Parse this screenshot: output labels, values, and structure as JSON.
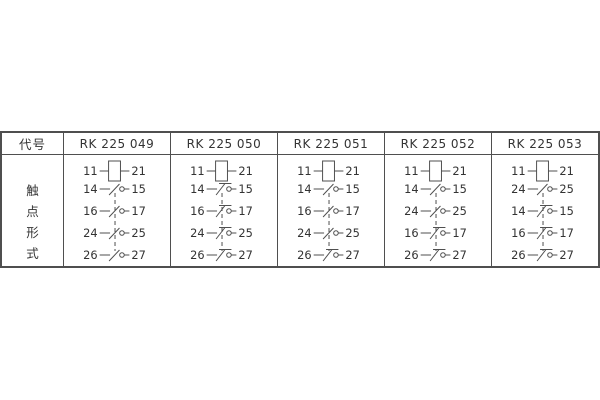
{
  "table": {
    "code_label": "代号",
    "row_label": "触点形式",
    "row_label_chars": [
      "触",
      "点",
      "形",
      "式"
    ],
    "colors": {
      "line": "#4f4f4f",
      "text": "#333333",
      "background": "#ffffff"
    },
    "columns": [
      {
        "code": "RK 225 049",
        "rows": [
          {
            "type": "coil",
            "left": "11",
            "right": "21"
          },
          {
            "type": "no",
            "left": "14",
            "right": "15"
          },
          {
            "type": "no",
            "left": "16",
            "right": "17"
          },
          {
            "type": "no",
            "left": "24",
            "right": "25"
          },
          {
            "type": "no",
            "left": "26",
            "right": "27"
          }
        ]
      },
      {
        "code": "RK 225 050",
        "rows": [
          {
            "type": "coil",
            "left": "11",
            "right": "21"
          },
          {
            "type": "nc",
            "left": "14",
            "right": "15"
          },
          {
            "type": "nc",
            "left": "16",
            "right": "17"
          },
          {
            "type": "nc",
            "left": "24",
            "right": "25"
          },
          {
            "type": "nc",
            "left": "26",
            "right": "27"
          }
        ]
      },
      {
        "code": "RK 225 051",
        "rows": [
          {
            "type": "coil",
            "left": "11",
            "right": "21"
          },
          {
            "type": "no",
            "left": "14",
            "right": "15"
          },
          {
            "type": "no",
            "left": "16",
            "right": "17"
          },
          {
            "type": "no",
            "left": "24",
            "right": "25"
          },
          {
            "type": "nc",
            "left": "26",
            "right": "27"
          }
        ]
      },
      {
        "code": "RK 225 052",
        "rows": [
          {
            "type": "coil",
            "left": "11",
            "right": "21"
          },
          {
            "type": "no",
            "left": "14",
            "right": "15"
          },
          {
            "type": "no",
            "left": "24",
            "right": "25"
          },
          {
            "type": "nc",
            "left": "16",
            "right": "17"
          },
          {
            "type": "nc",
            "left": "26",
            "right": "27"
          }
        ]
      },
      {
        "code": "RK 225 053",
        "rows": [
          {
            "type": "coil",
            "left": "11",
            "right": "21"
          },
          {
            "type": "no",
            "left": "24",
            "right": "25"
          },
          {
            "type": "nc",
            "left": "14",
            "right": "15"
          },
          {
            "type": "nc",
            "left": "16",
            "right": "17"
          },
          {
            "type": "nc",
            "left": "26",
            "right": "27"
          }
        ]
      }
    ]
  }
}
